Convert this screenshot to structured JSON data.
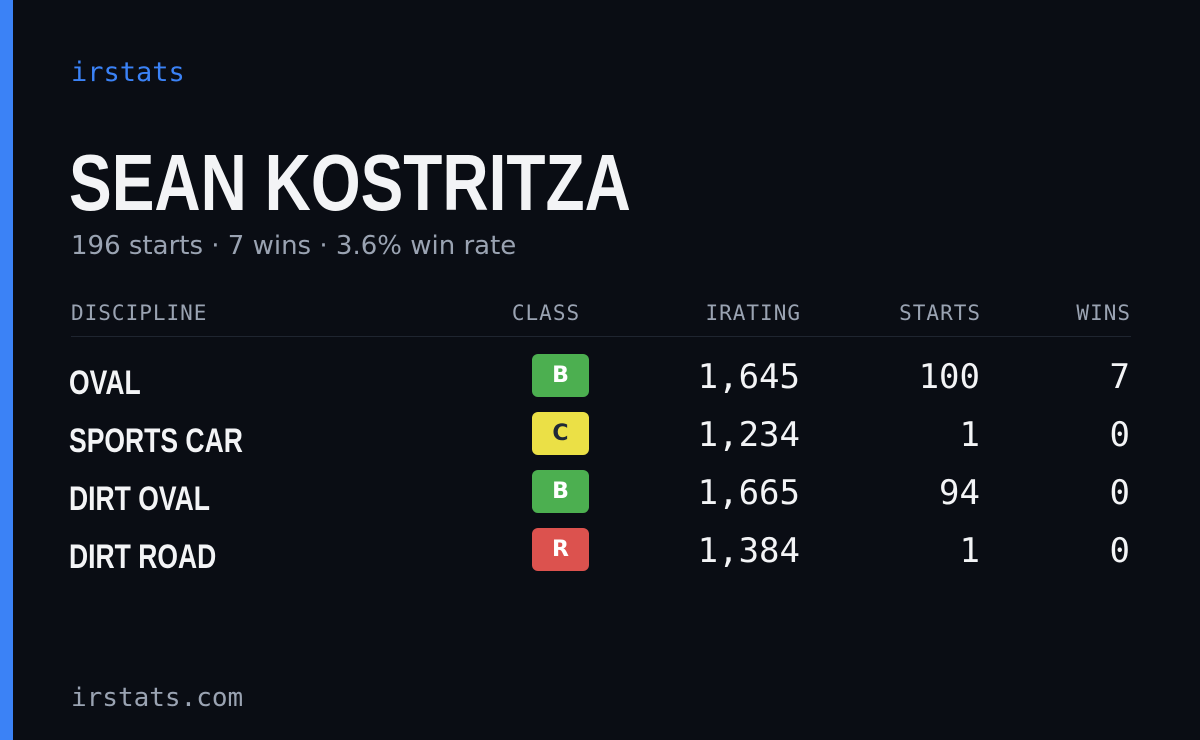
{
  "brand": {
    "name": "irstats"
  },
  "player": {
    "name": "SEAN KOSTRITZA",
    "summary": "196 starts · 7 wins · 3.6% win rate"
  },
  "table": {
    "headers": {
      "discipline": "DISCIPLINE",
      "class": "CLASS",
      "irating": "IRATING",
      "starts": "STARTS",
      "wins": "WINS"
    },
    "rows": [
      {
        "discipline": "OVAL",
        "class": "B",
        "class_color": "#4caf50",
        "class_text_color": "#ffffff",
        "irating": "1,645",
        "starts": "100",
        "wins": "7"
      },
      {
        "discipline": "SPORTS CAR",
        "class": "C",
        "class_color": "#ebe046",
        "class_text_color": "#1f2937",
        "irating": "1,234",
        "starts": "1",
        "wins": "0"
      },
      {
        "discipline": "DIRT OVAL",
        "class": "B",
        "class_color": "#4caf50",
        "class_text_color": "#ffffff",
        "irating": "1,665",
        "starts": "94",
        "wins": "0"
      },
      {
        "discipline": "DIRT ROAD",
        "class": "R",
        "class_color": "#dc524e",
        "class_text_color": "#ffffff",
        "irating": "1,384",
        "starts": "1",
        "wins": "0"
      }
    ]
  },
  "footer": {
    "url": "irstats.com"
  },
  "colors": {
    "background": "#0a0d14",
    "accent": "#3b82f6",
    "text_primary": "#f3f4f6",
    "text_muted": "#9aa3b2"
  }
}
